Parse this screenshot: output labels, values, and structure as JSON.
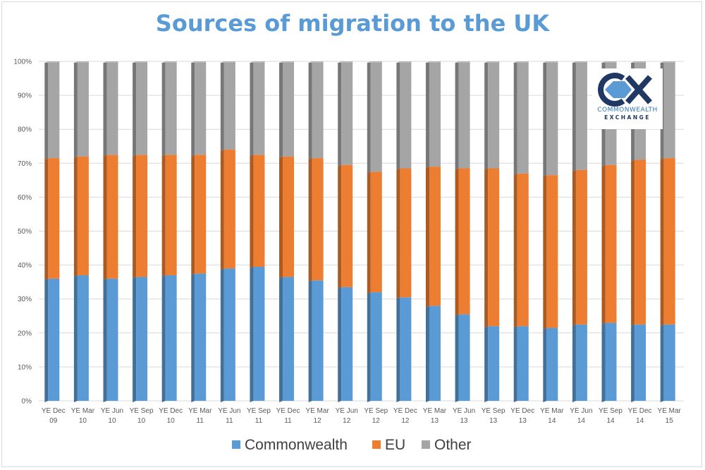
{
  "chart_data": {
    "type": "bar",
    "stacked": "percent",
    "title": "Sources of migration to the UK",
    "categories": [
      [
        "YE Dec",
        "09"
      ],
      [
        "YE Mar",
        "10"
      ],
      [
        "YE Jun",
        "10"
      ],
      [
        "YE Sep",
        "10"
      ],
      [
        "YE Dec",
        "10"
      ],
      [
        "YE Mar",
        "11"
      ],
      [
        "YE Jun",
        "11"
      ],
      [
        "YE Sep",
        "11"
      ],
      [
        "YE Dec",
        "11"
      ],
      [
        "YE Mar",
        "12"
      ],
      [
        "YE Jun",
        "12"
      ],
      [
        "YE Sep",
        "12"
      ],
      [
        "YE Dec",
        "12"
      ],
      [
        "YE Mar",
        "13"
      ],
      [
        "YE Jun",
        "13"
      ],
      [
        "YE Sep",
        "13"
      ],
      [
        "YE Dec",
        "13"
      ],
      [
        "YE Mar",
        "14"
      ],
      [
        "YE Jun",
        "14"
      ],
      [
        "YE Sep",
        "14"
      ],
      [
        "YE Dec",
        "14"
      ],
      [
        "YE Mar",
        "15"
      ]
    ],
    "series": [
      {
        "name": "Commonwealth",
        "color": "#5b9bd5",
        "values": [
          36,
          37,
          36,
          36.5,
          37,
          37.5,
          39,
          39.5,
          36.5,
          35.5,
          33.5,
          32,
          30.5,
          28,
          25.5,
          22,
          22,
          21.5,
          22.5,
          23,
          22.5,
          22.5
        ]
      },
      {
        "name": "EU",
        "color": "#ed7d31",
        "values": [
          35.5,
          35,
          36.5,
          36,
          35.5,
          35,
          35,
          33,
          35.5,
          36,
          36,
          35.5,
          38,
          41,
          43,
          46.5,
          45,
          45,
          45.5,
          46.5,
          48.5,
          49
        ]
      },
      {
        "name": "Other",
        "color": "#a5a5a5",
        "values": [
          28.5,
          28,
          27.5,
          27.5,
          27.5,
          27.5,
          26,
          27.5,
          28,
          28.5,
          30.5,
          32.5,
          31.5,
          31,
          31.5,
          31.5,
          33,
          33.5,
          32,
          30.5,
          29,
          28.5
        ]
      }
    ],
    "y_ticks": [
      "0%",
      "10%",
      "20%",
      "30%",
      "40%",
      "50%",
      "60%",
      "70%",
      "80%",
      "90%",
      "100%"
    ],
    "ylim": [
      0,
      100
    ],
    "grid": true,
    "legend_position": "bottom"
  },
  "logo": {
    "mark": "CX",
    "line1": "COMMONWEALTH",
    "line2": "EXCHANGE"
  }
}
